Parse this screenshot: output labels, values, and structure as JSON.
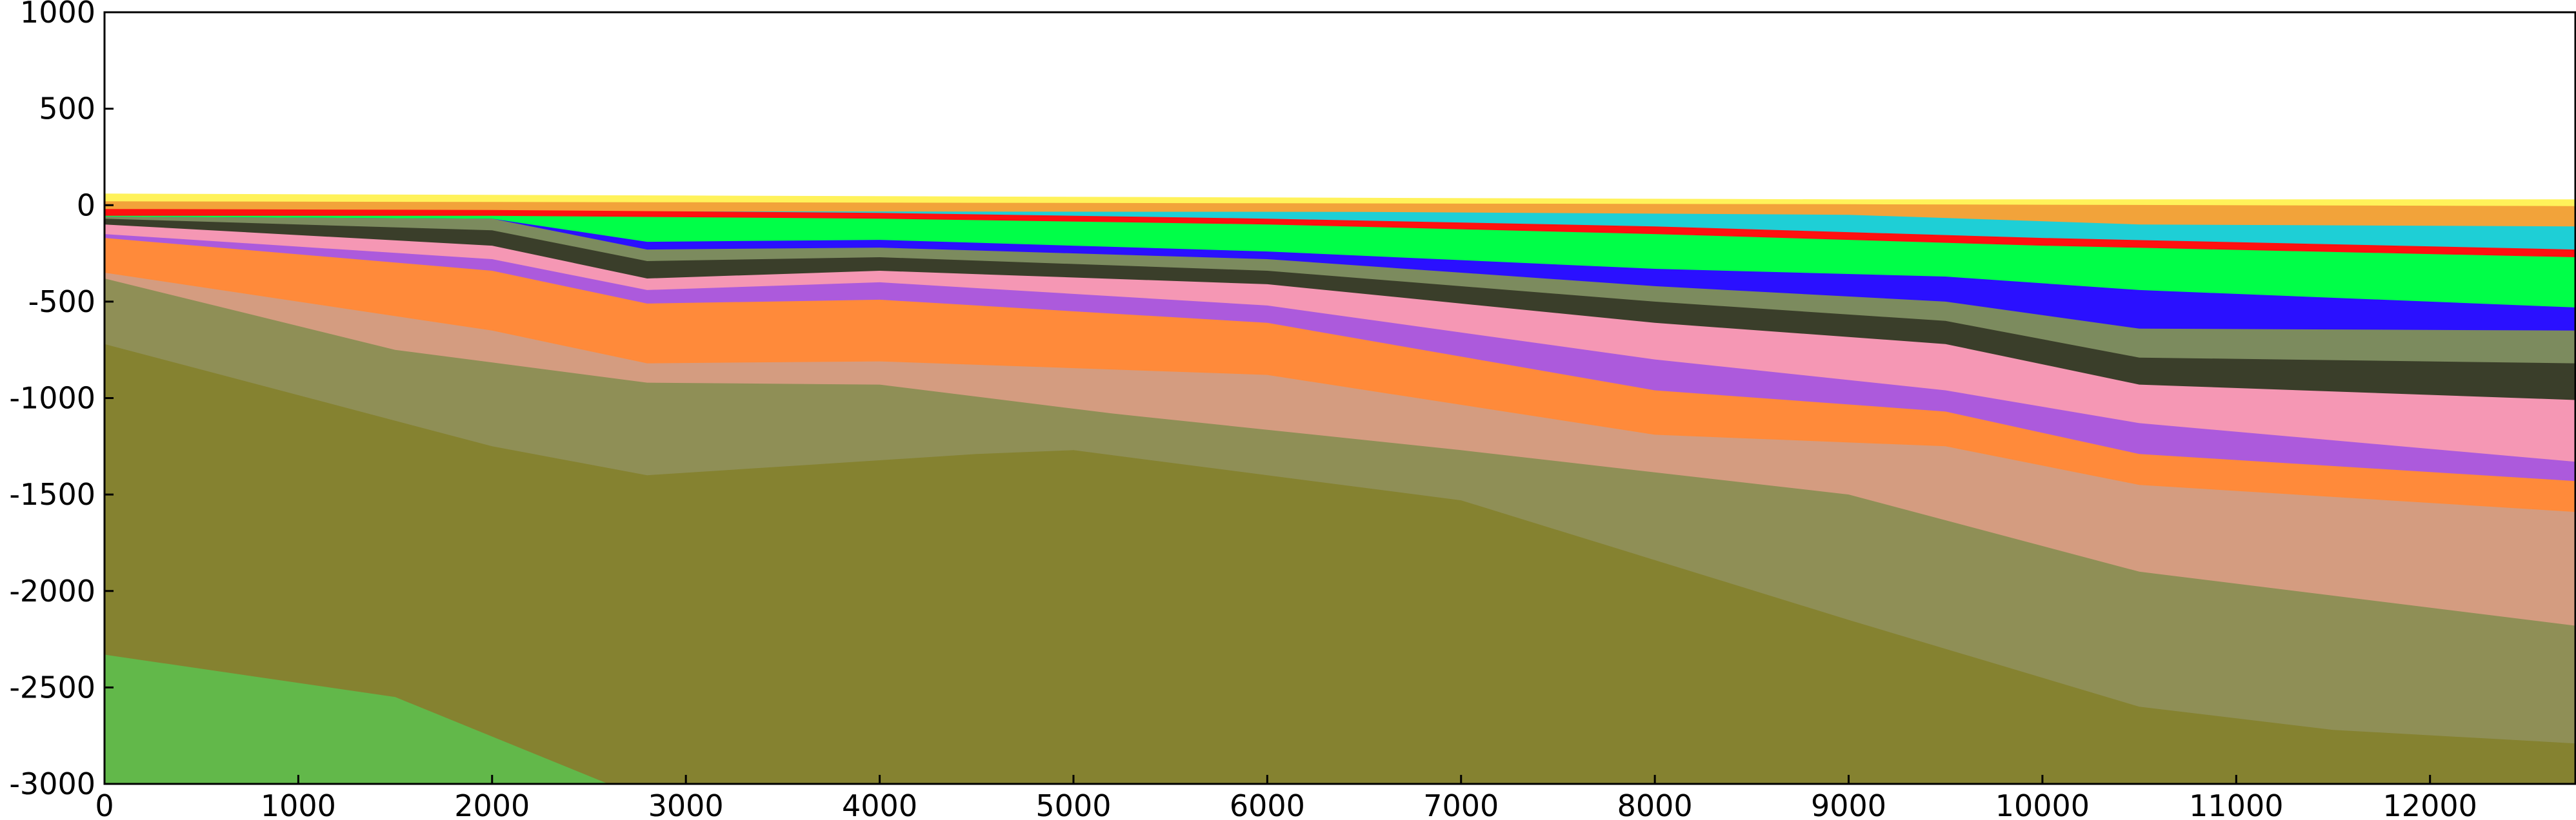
{
  "chart_data": {
    "type": "area",
    "title": "",
    "xlabel": "",
    "ylabel": "",
    "xlim": [
      0,
      12750
    ],
    "ylim": [
      -3000,
      1000
    ],
    "xticks": [
      0,
      1000,
      2000,
      3000,
      4000,
      5000,
      6000,
      7000,
      8000,
      9000,
      10000,
      11000,
      12000
    ],
    "yticks": [
      1000,
      500,
      0,
      -500,
      -1000,
      -1500,
      -2000,
      -2500,
      -3000
    ],
    "xtick_labels": [
      "0",
      "1000",
      "2000",
      "3000",
      "4000",
      "5000",
      "6000",
      "7000",
      "8000",
      "9000",
      "10000",
      "11000",
      "12000"
    ],
    "ytick_labels": [
      "1000",
      "500",
      "0",
      "-500",
      "-1000",
      "-1500",
      "-2000",
      "-2500",
      "-3000"
    ],
    "grid": false,
    "legend": "none",
    "layers": [
      {
        "color": "#fff25a",
        "x": [
          0,
          3000,
          6000,
          9000,
          12750
        ],
        "top": [
          60,
          50,
          40,
          30,
          30
        ],
        "bottom": [
          -3000,
          -3000,
          -3000,
          -3000,
          -3000
        ]
      },
      {
        "color": "#f2a33a",
        "x": [
          0,
          3000,
          6000,
          9000,
          12750
        ],
        "top": [
          20,
          15,
          10,
          5,
          -5
        ],
        "bottom": [
          -3000,
          -3000,
          -3000,
          -3000,
          -3000
        ]
      },
      {
        "color": "#1ecfd6",
        "x": [
          0,
          6500,
          9000,
          10500,
          12750
        ],
        "top": [
          -30,
          -35,
          -50,
          -100,
          -110
        ],
        "bottom": [
          -3000,
          -3000,
          -3000,
          -3000,
          -3000
        ]
      },
      {
        "color": "#ff1010",
        "x": [
          0,
          2000,
          4000,
          6000,
          8000,
          10000,
          12750
        ],
        "top": [
          -20,
          -25,
          -40,
          -70,
          -110,
          -170,
          -230
        ],
        "bottom": [
          -3000,
          -3000,
          -3000,
          -3000,
          -3000,
          -3000,
          -3000
        ]
      },
      {
        "color": "#00ff48",
        "x": [
          0,
          2000,
          4000,
          6000,
          8000,
          10000,
          12750
        ],
        "top": [
          -55,
          -55,
          -70,
          -100,
          -150,
          -210,
          -270
        ],
        "bottom": [
          -3000,
          -3000,
          -3000,
          -3000,
          -3000,
          -3000,
          -3000
        ]
      },
      {
        "color": "#2a10ff",
        "x": [
          0,
          2000,
          2800,
          4000,
          6000,
          8000,
          9500,
          10500,
          12750
        ],
        "top": [
          -60,
          -70,
          -190,
          -180,
          -240,
          -330,
          -370,
          -440,
          -530
        ],
        "bottom": [
          -3000,
          -3000,
          -3000,
          -3000,
          -3000,
          -3000,
          -3000,
          -3000,
          -3000
        ]
      },
      {
        "color": "#7c8b5e",
        "x": [
          0,
          2000,
          2800,
          4000,
          6000,
          8000,
          9500,
          10500,
          12750
        ],
        "top": [
          -60,
          -70,
          -230,
          -220,
          -280,
          -420,
          -500,
          -640,
          -650
        ],
        "bottom": [
          -3000,
          -3000,
          -3000,
          -3000,
          -3000,
          -3000,
          -3000,
          -3000,
          -3000
        ]
      },
      {
        "color": "#3a3e2a",
        "x": [
          0,
          2000,
          2800,
          4000,
          6000,
          8000,
          9500,
          10500,
          12750
        ],
        "top": [
          -70,
          -130,
          -290,
          -270,
          -340,
          -500,
          -600,
          -790,
          -820
        ],
        "bottom": [
          -3000,
          -3000,
          -3000,
          -3000,
          -3000,
          -3000,
          -3000,
          -3000,
          -3000
        ]
      },
      {
        "color": "#f597b4",
        "x": [
          0,
          2000,
          2800,
          4000,
          6000,
          8000,
          9500,
          10500,
          12750
        ],
        "top": [
          -100,
          -210,
          -380,
          -340,
          -410,
          -610,
          -720,
          -930,
          -1010
        ],
        "bottom": [
          -3000,
          -3000,
          -3000,
          -3000,
          -3000,
          -3000,
          -3000,
          -3000,
          -3000
        ]
      },
      {
        "color": "#ac5adc",
        "x": [
          0,
          2000,
          2800,
          4000,
          6000,
          8000,
          9500,
          10500,
          12750
        ],
        "top": [
          -150,
          -280,
          -440,
          -400,
          -520,
          -800,
          -960,
          -1130,
          -1330
        ],
        "bottom": [
          -3000,
          -3000,
          -3000,
          -3000,
          -3000,
          -3000,
          -3000,
          -3000,
          -3000
        ]
      },
      {
        "color": "#ff8a3a",
        "x": [
          0,
          2000,
          2800,
          4000,
          6000,
          8000,
          9500,
          10500,
          12750
        ],
        "top": [
          -170,
          -340,
          -510,
          -490,
          -610,
          -960,
          -1070,
          -1290,
          -1430
        ],
        "bottom": [
          -3000,
          -3000,
          -3000,
          -3000,
          -3000,
          -3000,
          -3000,
          -3000,
          -3000
        ]
      },
      {
        "color": "#d49c80",
        "x": [
          0,
          2000,
          2800,
          4000,
          6000,
          8000,
          9500,
          10500,
          12750
        ],
        "top": [
          -350,
          -650,
          -820,
          -810,
          -880,
          -1190,
          -1250,
          -1450,
          -1590
        ],
        "bottom": [
          -3000,
          -3000,
          -3000,
          -3000,
          -3000,
          -3000,
          -3000,
          -3000,
          -3000
        ]
      },
      {
        "color": "#8f8f56",
        "x": [
          0,
          1500,
          2800,
          4000,
          5200,
          7000,
          9000,
          10500,
          12750
        ],
        "top": [
          -380,
          -750,
          -920,
          -930,
          -1080,
          -1270,
          -1500,
          -1900,
          -2180
        ],
        "bottom": [
          -3000,
          -3000,
          -3000,
          -3000,
          -3000,
          -3000,
          -3000,
          -3000,
          -3000
        ]
      },
      {
        "color": "#858230",
        "x": [
          0,
          2000,
          2800,
          4500,
          5000,
          7000,
          9000,
          10500,
          11500,
          12750
        ],
        "top": [
          -720,
          -1250,
          -1400,
          -1290,
          -1270,
          -1530,
          -2150,
          -2600,
          -2720,
          -2790
        ],
        "bottom": [
          -3000,
          -3000,
          -3000,
          -3000,
          -3000,
          -3000,
          -3000,
          -3000,
          -3000,
          -3000
        ]
      },
      {
        "color": "#62b84a",
        "x": [
          0,
          1500,
          2600
        ],
        "top": [
          -2330,
          -2550,
          -3000
        ],
        "bottom": [
          -3000,
          -3000,
          -3000
        ]
      }
    ]
  }
}
